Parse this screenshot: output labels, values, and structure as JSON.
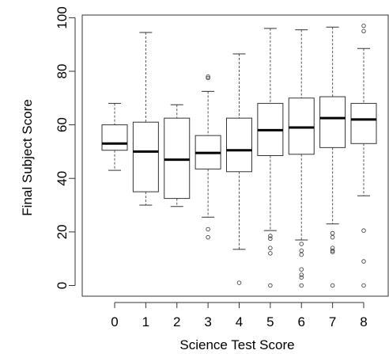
{
  "chart_data": {
    "type": "box",
    "xlabel": "Science Test Score",
    "ylabel": "Final Subject Score",
    "ylim": [
      -4,
      101
    ],
    "yticks": [
      0,
      20,
      40,
      60,
      80,
      100
    ],
    "grid": false,
    "legend": "none",
    "categories": [
      "0",
      "1",
      "2",
      "3",
      "4",
      "5",
      "6",
      "7",
      "8"
    ],
    "boxes": [
      {
        "category": "0",
        "whisker_low": 43,
        "q1": 50.5,
        "median": 53,
        "q3": 60,
        "whisker_high": 68,
        "outliers": []
      },
      {
        "category": "1",
        "whisker_low": 30,
        "q1": 35,
        "median": 50,
        "q3": 61,
        "whisker_high": 94.5,
        "outliers": []
      },
      {
        "category": "2",
        "whisker_low": 29.5,
        "q1": 32.5,
        "median": 47,
        "q3": 62.5,
        "whisker_high": 67.5,
        "outliers": []
      },
      {
        "category": "3",
        "whisker_low": 25.5,
        "q1": 43.5,
        "median": 49.5,
        "q3": 56,
        "whisker_high": 72.5,
        "outliers": [
          78,
          77.5,
          21,
          18
        ]
      },
      {
        "category": "4",
        "whisker_low": 13.5,
        "q1": 42.5,
        "median": 50.5,
        "q3": 62.5,
        "whisker_high": 86.5,
        "outliers": [
          1
        ]
      },
      {
        "category": "5",
        "whisker_low": 20.5,
        "q1": 48.5,
        "median": 58,
        "q3": 68,
        "whisker_high": 96,
        "outliers": [
          18.5,
          17.5,
          14,
          12,
          0
        ]
      },
      {
        "category": "6",
        "whisker_low": 17,
        "q1": 49,
        "median": 59,
        "q3": 70,
        "whisker_high": 95.5,
        "outliers": [
          15.5,
          13,
          11.5,
          6,
          4,
          3,
          0
        ]
      },
      {
        "category": "7",
        "whisker_low": 23,
        "q1": 51.5,
        "median": 62.5,
        "q3": 70.5,
        "whisker_high": 96.5,
        "outliers": [
          19.5,
          18,
          14,
          13,
          12.5,
          0
        ]
      },
      {
        "category": "8",
        "whisker_low": 33.5,
        "q1": 53,
        "median": 62,
        "q3": 68,
        "whisker_high": 88.5,
        "outliers": [
          97,
          95,
          20.5,
          9,
          0
        ]
      }
    ]
  }
}
